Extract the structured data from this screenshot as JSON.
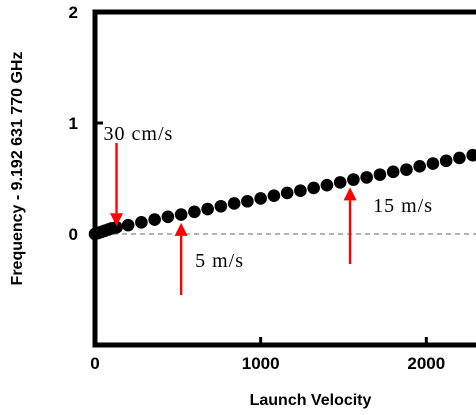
{
  "chart_data": {
    "type": "scatter",
    "title": "",
    "xlabel": "Launch Velocity",
    "ylabel": "Frequency - 9.192 631 770 GHz",
    "xlim": [
      0,
      2300
    ],
    "ylim": [
      -1,
      2
    ],
    "x_ticks": [
      {
        "value": 0,
        "label": "0"
      },
      {
        "value": 1000,
        "label": "1000"
      },
      {
        "value": 2000,
        "label": "2000"
      }
    ],
    "y_ticks": [
      {
        "value": 0,
        "label": "0"
      },
      {
        "value": 1,
        "label": "1"
      },
      {
        "value": 2,
        "label": "2"
      }
    ],
    "grid": false,
    "reference_line": {
      "y": 0,
      "style": "dashed",
      "color": "#888888"
    },
    "series": [
      {
        "color": "#000000",
        "marker": "filled-circle",
        "x": [
          0,
          20,
          40,
          60,
          80,
          100,
          130,
          200,
          280,
          360,
          440,
          520,
          600,
          680,
          760,
          840,
          920,
          1000,
          1080,
          1160,
          1240,
          1320,
          1400,
          1480,
          1560,
          1640,
          1720,
          1800,
          1880,
          1960,
          2040,
          2120,
          2200,
          2280
        ],
        "y": [
          0.0,
          0.01,
          0.02,
          0.03,
          0.04,
          0.05,
          0.06,
          0.08,
          0.105,
          0.13,
          0.155,
          0.175,
          0.2,
          0.225,
          0.25,
          0.275,
          0.295,
          0.32,
          0.345,
          0.37,
          0.39,
          0.415,
          0.44,
          0.465,
          0.49,
          0.51,
          0.535,
          0.56,
          0.58,
          0.61,
          0.635,
          0.66,
          0.685,
          0.71
        ]
      }
    ],
    "annotations": [
      {
        "text": "30 cm/s",
        "arrow_x": 130,
        "arrow_from_y": 0.82,
        "arrow_to_y": 0.07,
        "direction": "down",
        "color": "#ff0000"
      },
      {
        "text": "5 m/s",
        "arrow_x": 520,
        "arrow_from_y": -0.55,
        "arrow_to_y": 0.1,
        "direction": "up",
        "color": "#ff0000"
      },
      {
        "text": "15 m/s",
        "arrow_x": 1540,
        "arrow_from_y": -0.27,
        "arrow_to_y": 0.42,
        "direction": "up",
        "color": "#ff0000"
      }
    ]
  }
}
